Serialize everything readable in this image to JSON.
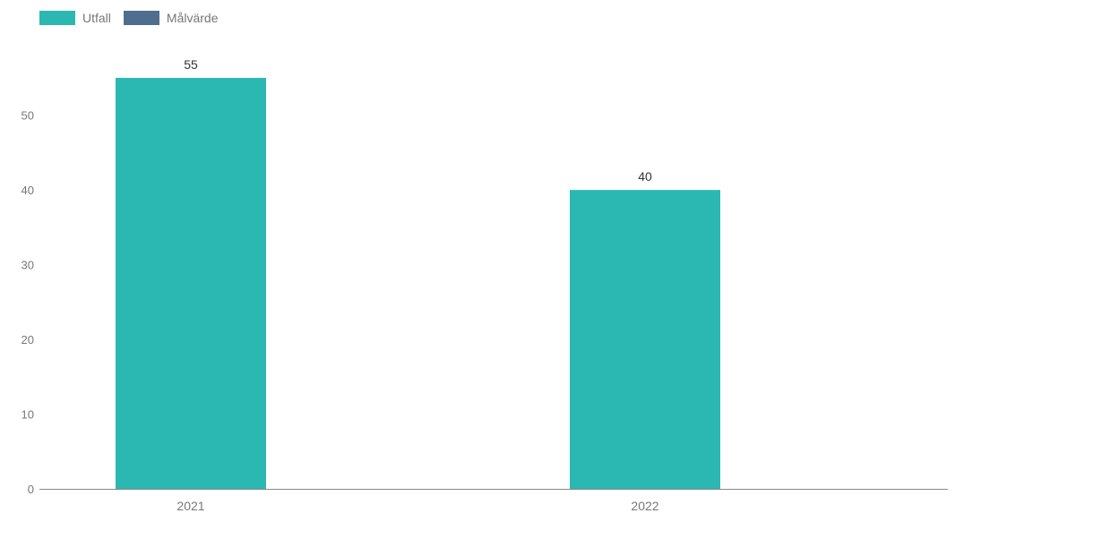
{
  "chart_data": {
    "type": "bar",
    "categories": [
      "2021",
      "2022"
    ],
    "series": [
      {
        "name": "Utfall",
        "values": [
          55,
          40
        ],
        "color": "#2bb8b2"
      },
      {
        "name": "Målvärde",
        "values": [
          null,
          null
        ],
        "color": "#4f6d8f"
      }
    ],
    "data_labels": [
      "55",
      "40"
    ],
    "y_ticks": [
      0,
      10,
      20,
      30,
      40,
      50
    ],
    "ylim": [
      0,
      55
    ],
    "grid": false,
    "legend_position": "top-left",
    "title": "",
    "xlabel": "",
    "ylabel": ""
  }
}
